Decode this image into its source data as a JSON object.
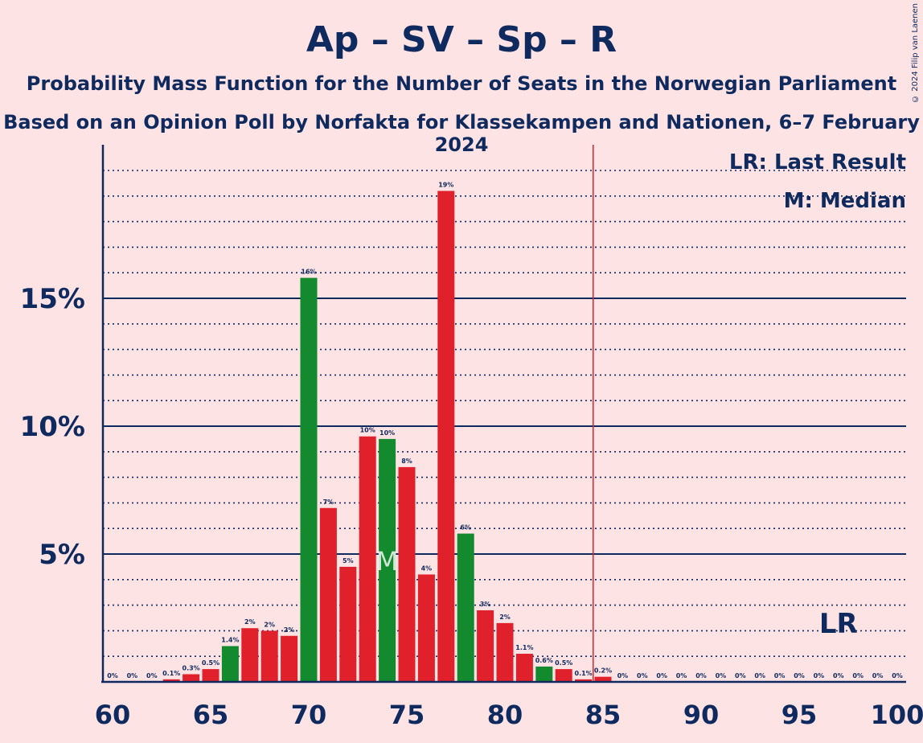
{
  "header": {
    "title": "Ap – SV – Sp – R",
    "subtitle": "Probability Mass Function for the Number of Seats in the Norwegian Parliament",
    "subtitle2": "Based on an Opinion Poll by Norfakta for Klassekampen and Nationen, 6–7 February 2024",
    "copyright": "© 2024 Filip van Laenen"
  },
  "legend": {
    "last_result": "LR: Last Result",
    "median": "M: Median",
    "lr_marker": "LR",
    "median_marker": "M"
  },
  "colors": {
    "background": "#FDE3E4",
    "red_bar": "#E0202A",
    "green_bar": "#138A2E",
    "axis": "#0F2A5E",
    "lr_line": "#E0202A"
  },
  "chart_data": {
    "type": "bar",
    "x": [
      60,
      61,
      62,
      63,
      64,
      65,
      66,
      67,
      68,
      69,
      70,
      71,
      72,
      73,
      74,
      75,
      76,
      77,
      78,
      79,
      80,
      81,
      82,
      83,
      84,
      85,
      86,
      87,
      88,
      89,
      90,
      91,
      92,
      93,
      94,
      95,
      96,
      97,
      98,
      99,
      100
    ],
    "values": [
      0,
      0,
      0,
      0.1,
      0.3,
      0.5,
      1.4,
      2.1,
      2.0,
      1.8,
      15.8,
      6.8,
      4.5,
      9.6,
      9.5,
      8.4,
      4.2,
      19.2,
      5.8,
      2.8,
      2.3,
      1.1,
      0.6,
      0.5,
      0.1,
      0.2,
      0,
      0,
      0,
      0,
      0,
      0,
      0,
      0,
      0,
      0,
      0,
      0,
      0,
      0,
      0
    ],
    "data_labels": [
      "0%",
      "0%",
      "0%",
      "0.1%",
      "0.3%",
      "0.5%",
      "1.4%",
      "2%",
      "2%",
      "2%",
      "16%",
      "7%",
      "5%",
      "10%",
      "10%",
      "8%",
      "4%",
      "19%",
      "6%",
      "3%",
      "2%",
      "1.1%",
      "0.6%",
      "0.5%",
      "0.1%",
      "0.2%",
      "0%",
      "0%",
      "0%",
      "0%",
      "0%",
      "0%",
      "0%",
      "0%",
      "0%",
      "0%",
      "0%",
      "0%",
      "0%",
      "0%",
      "0%"
    ],
    "green_seats": [
      66,
      70,
      74,
      78,
      82
    ],
    "median": 74,
    "last_result": 97,
    "majority_line": 85,
    "xlim": [
      60,
      100
    ],
    "ylim": [
      0,
      20
    ],
    "y_ticks": [
      5,
      10,
      15
    ],
    "y_tick_labels": [
      "5%",
      "10%",
      "15%"
    ],
    "x_ticks": [
      60,
      65,
      70,
      75,
      80,
      85,
      90,
      95,
      100
    ],
    "x_tick_labels": [
      "60",
      "65",
      "70",
      "75",
      "80",
      "85",
      "90",
      "95",
      "100"
    ],
    "grid": true
  }
}
